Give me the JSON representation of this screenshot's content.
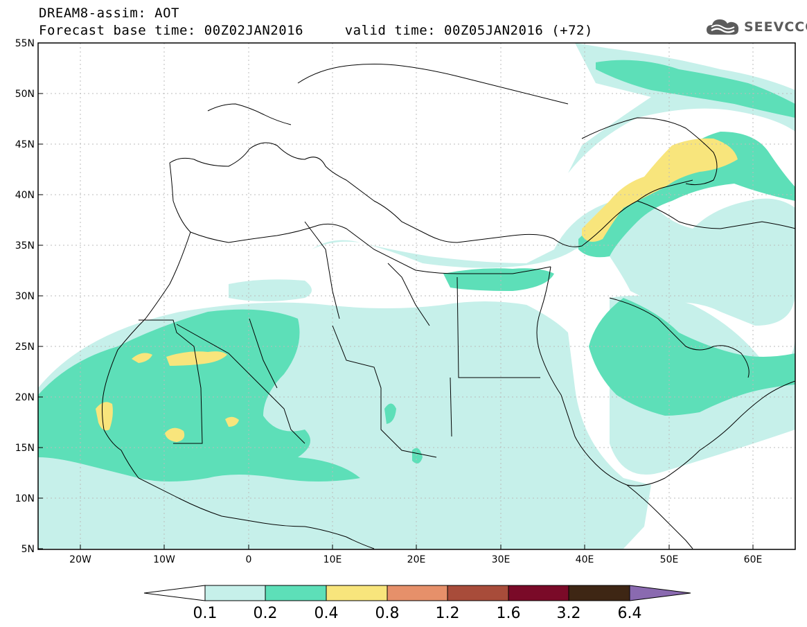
{
  "title": {
    "line1": "DREAM8-assim: AOT",
    "line2": "Forecast base time: 00Z02JAN2016     valid time: 00Z05JAN2016 (+72)"
  },
  "logo": {
    "text": "SEEVCCC",
    "icon": "cloud-icon",
    "color": "#5b5b5b"
  },
  "map": {
    "variable": "AOT",
    "lon_range": [
      -25,
      65
    ],
    "lat_range": [
      5,
      55
    ],
    "grid": true,
    "lat_ticks": [
      "55N",
      "50N",
      "45N",
      "40N",
      "35N",
      "30N",
      "25N",
      "20N",
      "15N",
      "10N",
      "5N"
    ],
    "lon_ticks": [
      "20W",
      "10W",
      "0",
      "10E",
      "20E",
      "30E",
      "40E",
      "50E",
      "60E"
    ]
  },
  "colorbar": {
    "levels": [
      "0.1",
      "0.2",
      "0.4",
      "0.8",
      "1.2",
      "1.6",
      "3.2",
      "6.4"
    ],
    "colors": [
      "#ffffff",
      "#c6f0ea",
      "#5ddfb8",
      "#f8e57c",
      "#e6906a",
      "#a84c3a",
      "#7a0a28",
      "#3e2614",
      "#8a6ab0"
    ]
  }
}
